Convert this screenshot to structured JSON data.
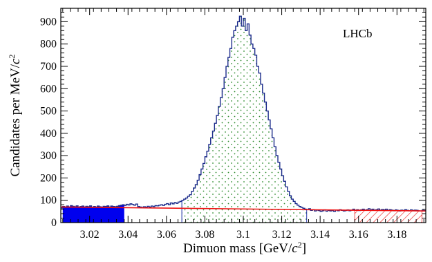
{
  "chart_data": {
    "type": "histogram",
    "xlabel_main": "Dimuon mass [GeV/",
    "xlabel_unit": "c",
    "xlabel_sup": "2",
    "xlabel_end": "]",
    "ylabel_main": "Candidates per MeV/",
    "ylabel_unit": "c",
    "ylabel_sup": "2",
    "annotation": "LHCb",
    "xlim": [
      3.005,
      3.195
    ],
    "ylim": [
      0,
      960
    ],
    "xticks": [
      3.02,
      3.04,
      3.06,
      3.08,
      3.1,
      3.12,
      3.14,
      3.16,
      3.18
    ],
    "xtick_labels": [
      "3.02",
      "3.04",
      "3.06",
      "3.08",
      "3.1",
      "3.12",
      "3.14",
      "3.16",
      "3.18"
    ],
    "yticks": [
      0,
      100,
      200,
      300,
      400,
      500,
      600,
      700,
      800,
      900
    ],
    "ytick_labels": [
      "0",
      "100",
      "200",
      "300",
      "400",
      "500",
      "600",
      "700",
      "800",
      "900"
    ],
    "bin_start": 3.005,
    "bin_width": 0.001,
    "histogram": [
      65,
      72,
      68,
      74,
      70,
      76,
      73,
      71,
      75,
      69,
      72,
      74,
      70,
      73,
      71,
      75,
      68,
      72,
      70,
      74,
      71,
      69,
      73,
      72,
      75,
      70,
      74,
      72,
      71,
      73,
      76,
      78,
      80,
      77,
      82,
      79,
      84,
      81,
      78,
      83,
      72,
      70,
      68,
      71,
      69,
      73,
      70,
      74,
      72,
      76,
      75,
      78,
      80,
      77,
      82,
      85,
      80,
      88,
      84,
      90,
      86,
      92,
      95,
      100,
      105,
      110,
      118,
      125,
      140,
      155,
      170,
      190,
      215,
      240,
      265,
      295,
      320,
      350,
      380,
      410,
      445,
      480,
      520,
      560,
      600,
      650,
      700,
      740,
      780,
      830,
      860,
      880,
      900,
      925,
      880,
      915,
      860,
      890,
      840,
      800,
      780,
      750,
      700,
      670,
      620,
      580,
      540,
      500,
      460,
      420,
      380,
      340,
      300,
      270,
      240,
      210,
      185,
      160,
      140,
      120,
      105,
      95,
      85,
      78,
      72,
      68,
      64,
      60,
      58,
      62,
      55,
      58,
      52,
      56,
      54,
      50,
      53,
      57,
      51,
      55,
      52,
      54,
      50,
      56,
      53,
      58,
      55,
      52,
      54,
      57,
      53,
      56,
      60,
      55,
      58,
      54,
      57,
      60,
      56,
      58,
      62,
      57,
      60,
      55,
      58,
      61,
      56,
      59,
      57,
      60,
      55,
      58,
      56,
      53,
      57,
      55,
      52,
      56,
      54,
      58,
      55,
      53,
      57,
      54,
      56,
      55,
      53,
      52,
      55,
      54
    ],
    "background_fit": {
      "x": [
        3.005,
        3.195
      ],
      "y": [
        70,
        52
      ],
      "color": "#ee1111"
    },
    "signal_region": [
      3.068,
      3.133
    ],
    "left_sideband": [
      3.006,
      3.038
    ],
    "right_sideband": [
      3.158,
      3.193
    ],
    "colors": {
      "histogram_line": "#1a2a8a",
      "signal_dots": "#2e8b2e",
      "left_sideband": "#0000ee",
      "right_sideband": "#ee2222",
      "region_line": "#2233aa"
    }
  }
}
